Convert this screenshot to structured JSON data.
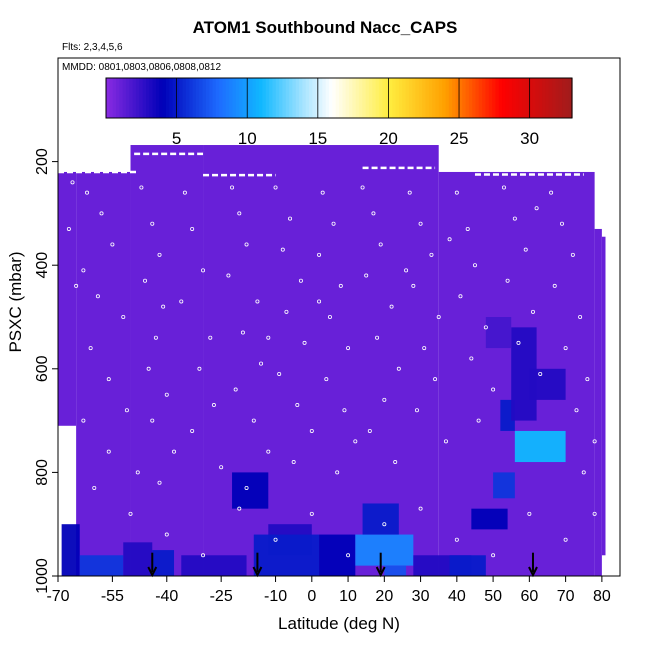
{
  "chart_data": {
    "type": "heatmap",
    "title": "ATOM1 Southbound Nacc_CAPS",
    "flights_label": "Flts: 2,3,4,5,6",
    "dates_label": "MMDD: 0801,0803,0806,0808,0812",
    "xlabel": "Latitude (deg N)",
    "ylabel": "PSXC (mbar)",
    "xlim": [
      -70,
      85
    ],
    "ylim": [
      1000,
      0
    ],
    "x_ticks": [
      -70,
      -55,
      -40,
      -25,
      -10,
      0,
      10,
      20,
      30,
      40,
      50,
      60,
      70,
      80
    ],
    "x_tick_labels": [
      "-70",
      "-55",
      "-40",
      "-25",
      "-10",
      "0",
      "10",
      "20",
      "30",
      "40",
      "50",
      "60",
      "70",
      "80"
    ],
    "y_ticks": [
      200,
      400,
      600,
      800,
      1000
    ],
    "y_tick_labels": [
      "200",
      "400",
      "600",
      "800",
      "1000"
    ],
    "colorbar": {
      "range": [
        0,
        33
      ],
      "ticks": [
        5,
        10,
        15,
        20,
        25,
        30
      ],
      "tick_labels": [
        "5",
        "10",
        "15",
        "20",
        "25",
        "30"
      ],
      "stops": [
        {
          "v": 0,
          "c": "#8a2be2"
        },
        {
          "v": 4,
          "c": "#0000b8"
        },
        {
          "v": 8,
          "c": "#1e6cff"
        },
        {
          "v": 11,
          "c": "#10b8ff"
        },
        {
          "v": 14,
          "c": "#a8e4ff"
        },
        {
          "v": 16,
          "c": "#ffffff"
        },
        {
          "v": 20,
          "c": "#ffee40"
        },
        {
          "v": 24,
          "c": "#ffa000"
        },
        {
          "v": 28,
          "c": "#ff0000"
        },
        {
          "v": 33,
          "c": "#a01c1c"
        }
      ]
    },
    "background_value": 1,
    "coverage_columns": [
      {
        "x0": -70,
        "x1": -65,
        "p_top": 220,
        "p_bot": 710
      },
      {
        "x0": -65,
        "x1": -50,
        "p_top": 220,
        "p_bot": 1000
      },
      {
        "x0": -50,
        "x1": -30,
        "p_top": 168,
        "p_bot": 1000
      },
      {
        "x0": -30,
        "x1": 35,
        "p_top": 168,
        "p_bot": 1000
      },
      {
        "x0": 35,
        "x1": 78,
        "p_top": 220,
        "p_bot": 1000
      },
      {
        "x0": 78,
        "x1": 80,
        "p_top": 330,
        "p_bot": 1000
      },
      {
        "x0": 80,
        "x1": 81,
        "p_top": 345,
        "p_bot": 960
      }
    ],
    "enhanced_patches": [
      {
        "x0": -69,
        "x1": -64,
        "p0": 900,
        "p1": 1000,
        "value": 4
      },
      {
        "x0": -64,
        "x1": -52,
        "p0": 960,
        "p1": 1000,
        "value": 6
      },
      {
        "x0": -52,
        "x1": -44,
        "p0": 935,
        "p1": 1000,
        "value": 3
      },
      {
        "x0": -44,
        "x1": -38,
        "p0": 950,
        "p1": 1000,
        "value": 5
      },
      {
        "x0": -36,
        "x1": -18,
        "p0": 960,
        "p1": 1000,
        "value": 3
      },
      {
        "x0": -22,
        "x1": -12,
        "p0": 800,
        "p1": 870,
        "value": 4
      },
      {
        "x0": -12,
        "x1": 0,
        "p0": 900,
        "p1": 960,
        "value": 3
      },
      {
        "x0": -16,
        "x1": 2,
        "p0": 920,
        "p1": 1000,
        "value": 5
      },
      {
        "x0": 2,
        "x1": 12,
        "p0": 920,
        "p1": 1000,
        "value": 4
      },
      {
        "x0": 12,
        "x1": 28,
        "p0": 920,
        "p1": 980,
        "value": 9
      },
      {
        "x0": 14,
        "x1": 24,
        "p0": 860,
        "p1": 920,
        "value": 5
      },
      {
        "x0": 20,
        "x1": 26,
        "p0": 980,
        "p1": 1000,
        "value": 7
      },
      {
        "x0": 28,
        "x1": 44,
        "p0": 960,
        "p1": 1000,
        "value": 3
      },
      {
        "x0": 38,
        "x1": 48,
        "p0": 960,
        "p1": 1000,
        "value": 5
      },
      {
        "x0": 44,
        "x1": 54,
        "p0": 870,
        "p1": 910,
        "value": 4
      },
      {
        "x0": 50,
        "x1": 56,
        "p0": 800,
        "p1": 850,
        "value": 6
      },
      {
        "x0": 52,
        "x1": 56,
        "p0": 660,
        "p1": 720,
        "value": 5
      },
      {
        "x0": 55,
        "x1": 62,
        "p0": 520,
        "p1": 700,
        "value": 3
      },
      {
        "x0": 56,
        "x1": 70,
        "p0": 720,
        "p1": 780,
        "value": 11
      },
      {
        "x0": 60,
        "x1": 70,
        "p0": 600,
        "p1": 660,
        "value": 3
      },
      {
        "x0": 48,
        "x1": 55,
        "p0": 500,
        "p1": 560,
        "value": 2
      }
    ],
    "arrows_lat": [
      -44,
      -15,
      19,
      61
    ],
    "sample_points": [
      [
        -66,
        240
      ],
      [
        -62,
        260
      ],
      [
        -58,
        300
      ],
      [
        -67,
        330
      ],
      [
        -55,
        360
      ],
      [
        -63,
        410
      ],
      [
        -59,
        460
      ],
      [
        -52,
        500
      ],
      [
        -61,
        560
      ],
      [
        -56,
        620
      ],
      [
        -51,
        680
      ],
      [
        -63,
        700
      ],
      [
        -47,
        250
      ],
      [
        -44,
        320
      ],
      [
        -42,
        380
      ],
      [
        -46,
        430
      ],
      [
        -41,
        480
      ],
      [
        -43,
        540
      ],
      [
        -45,
        600
      ],
      [
        -40,
        650
      ],
      [
        -44,
        700
      ],
      [
        -38,
        760
      ],
      [
        -42,
        820
      ],
      [
        -35,
        260
      ],
      [
        -33,
        330
      ],
      [
        -30,
        410
      ],
      [
        -36,
        470
      ],
      [
        -28,
        540
      ],
      [
        -31,
        600
      ],
      [
        -27,
        670
      ],
      [
        -33,
        720
      ],
      [
        -25,
        790
      ],
      [
        -22,
        250
      ],
      [
        -20,
        300
      ],
      [
        -18,
        360
      ],
      [
        -23,
        420
      ],
      [
        -15,
        470
      ],
      [
        -19,
        530
      ],
      [
        -14,
        590
      ],
      [
        -21,
        640
      ],
      [
        -16,
        700
      ],
      [
        -12,
        760
      ],
      [
        -18,
        830
      ],
      [
        -10,
        250
      ],
      [
        -6,
        310
      ],
      [
        -8,
        370
      ],
      [
        -3,
        430
      ],
      [
        -7,
        490
      ],
      [
        -2,
        550
      ],
      [
        -9,
        610
      ],
      [
        -4,
        670
      ],
      [
        0,
        720
      ],
      [
        -5,
        780
      ],
      [
        3,
        260
      ],
      [
        6,
        320
      ],
      [
        2,
        380
      ],
      [
        8,
        440
      ],
      [
        5,
        500
      ],
      [
        10,
        560
      ],
      [
        4,
        620
      ],
      [
        9,
        680
      ],
      [
        12,
        740
      ],
      [
        7,
        800
      ],
      [
        14,
        250
      ],
      [
        17,
        300
      ],
      [
        19,
        360
      ],
      [
        15,
        420
      ],
      [
        22,
        480
      ],
      [
        18,
        540
      ],
      [
        24,
        600
      ],
      [
        20,
        660
      ],
      [
        16,
        720
      ],
      [
        23,
        780
      ],
      [
        27,
        260
      ],
      [
        30,
        320
      ],
      [
        33,
        380
      ],
      [
        28,
        440
      ],
      [
        35,
        500
      ],
      [
        31,
        560
      ],
      [
        34,
        620
      ],
      [
        29,
        680
      ],
      [
        37,
        740
      ],
      [
        40,
        260
      ],
      [
        43,
        330
      ],
      [
        45,
        400
      ],
      [
        41,
        460
      ],
      [
        48,
        520
      ],
      [
        44,
        580
      ],
      [
        50,
        640
      ],
      [
        46,
        700
      ],
      [
        53,
        250
      ],
      [
        56,
        310
      ],
      [
        59,
        370
      ],
      [
        54,
        430
      ],
      [
        61,
        490
      ],
      [
        57,
        550
      ],
      [
        63,
        610
      ],
      [
        66,
        260
      ],
      [
        69,
        320
      ],
      [
        72,
        380
      ],
      [
        67,
        440
      ],
      [
        74,
        500
      ],
      [
        70,
        560
      ],
      [
        76,
        620
      ],
      [
        73,
        680
      ],
      [
        78,
        740
      ],
      [
        75,
        800
      ],
      [
        -60,
        830
      ],
      [
        -50,
        880
      ],
      [
        -40,
        920
      ],
      [
        -30,
        960
      ],
      [
        -20,
        870
      ],
      [
        -10,
        930
      ],
      [
        0,
        880
      ],
      [
        10,
        960
      ],
      [
        20,
        900
      ],
      [
        30,
        870
      ],
      [
        40,
        930
      ],
      [
        50,
        960
      ],
      [
        60,
        880
      ],
      [
        70,
        930
      ],
      [
        78,
        880
      ],
      [
        -56,
        760
      ],
      [
        -48,
        800
      ],
      [
        -12,
        540
      ],
      [
        2,
        470
      ],
      [
        26,
        410
      ],
      [
        38,
        350
      ],
      [
        62,
        290
      ],
      [
        -65,
        440
      ]
    ],
    "flight_tracks": [
      {
        "x0": -70,
        "x1": -48,
        "p": 220
      },
      {
        "x0": -49,
        "x1": -30,
        "p": 185
      },
      {
        "x0": -30,
        "x1": -10,
        "p": 226
      },
      {
        "x0": 14,
        "x1": 34,
        "p": 212
      },
      {
        "x0": 45,
        "x1": 75,
        "p": 225
      }
    ]
  }
}
